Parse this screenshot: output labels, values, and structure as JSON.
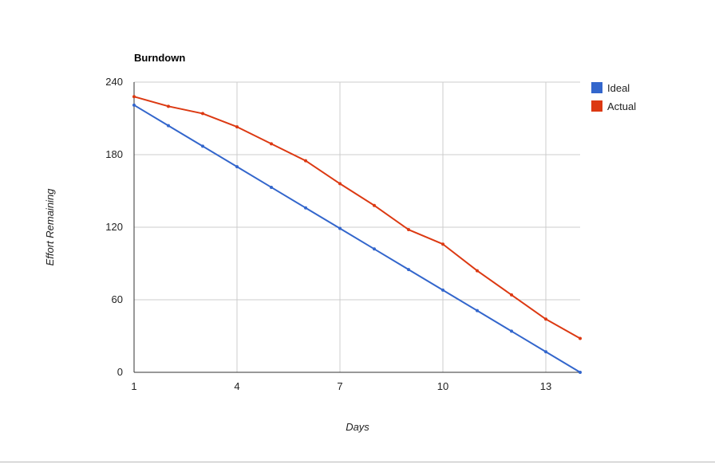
{
  "chart_data": {
    "type": "line",
    "title": "Burndown",
    "xlabel": "Days",
    "ylabel": "Effort Remaining",
    "xlim": [
      1,
      14
    ],
    "ylim": [
      0,
      240
    ],
    "x_ticks": [
      "1",
      "4",
      "7",
      "10",
      "13"
    ],
    "y_ticks": [
      "0",
      "60",
      "120",
      "180",
      "240"
    ],
    "grid": true,
    "legend_position": "right",
    "x": [
      1,
      2,
      3,
      4,
      5,
      6,
      7,
      8,
      9,
      10,
      11,
      12,
      13,
      14
    ],
    "series": [
      {
        "name": "Ideal",
        "color": "#3366cc",
        "values": [
          221,
          204,
          187,
          170,
          153,
          136,
          119,
          102,
          85,
          68,
          51,
          34,
          17,
          0
        ]
      },
      {
        "name": "Actual",
        "color": "#dc3912",
        "values": [
          228,
          220,
          214,
          203,
          189,
          175,
          156,
          138,
          118,
          106,
          84,
          64,
          44,
          28
        ]
      }
    ]
  }
}
